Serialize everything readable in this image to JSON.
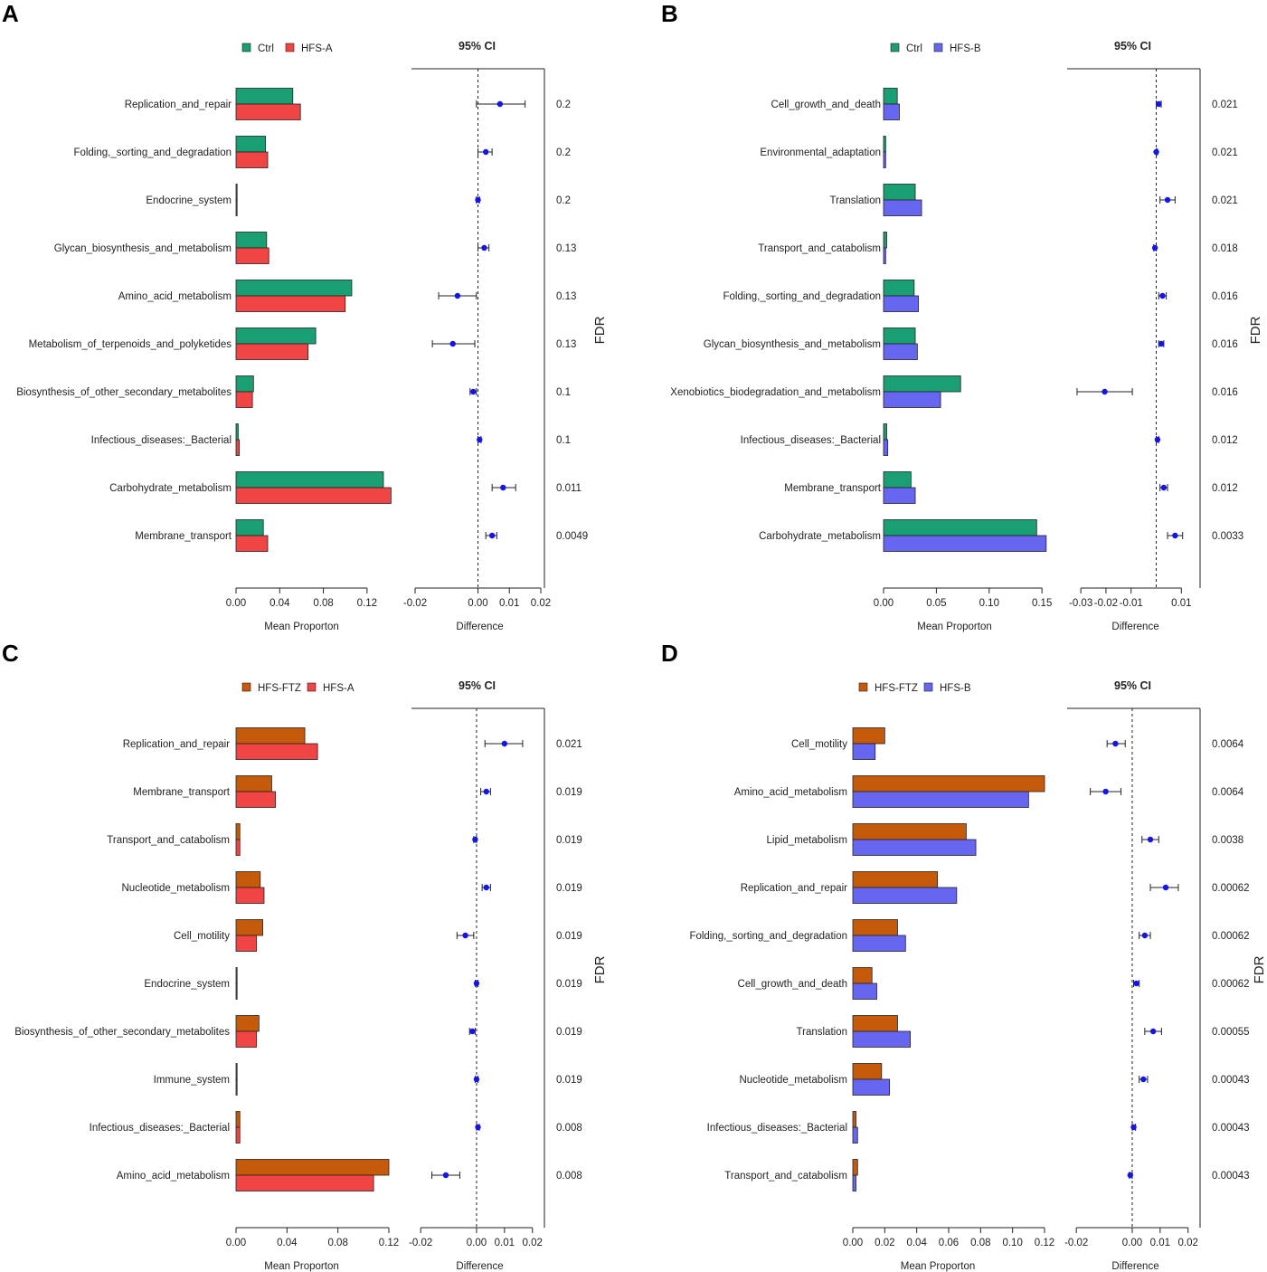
{
  "colors": {
    "green": "#1a9e74",
    "red": "#f14444",
    "orange": "#c55a0a",
    "blue": "#6666f1",
    "point": "#1515e8"
  },
  "chart_data": [
    {
      "type": "bar",
      "panel": "A",
      "legend": [
        {
          "name": "Ctrl",
          "color": "#1a9e74"
        },
        {
          "name": "HFS-A",
          "color": "#f14444"
        }
      ],
      "ci_title": "95% CI",
      "fdr_label": "FDR",
      "xlabel": "Mean Proporton",
      "diff_label": "Difference",
      "bar_xlim": [
        0,
        0.14
      ],
      "bar_ticks": [
        "0.00",
        "0.04",
        "0.08",
        "0.12"
      ],
      "bar_tick_values": [
        0,
        0.04,
        0.08,
        0.12
      ],
      "diff_xlim": [
        -0.02,
        0.02
      ],
      "diff_ticks": [
        "-0.02",
        "0.00",
        "0.01",
        "0.02"
      ],
      "diff_tick_values": [
        -0.02,
        0,
        0.01,
        0.02
      ],
      "categories": [
        "Replication_and_repair",
        "Folding,_sorting_and_degradation",
        "Endocrine_system",
        "Glycan_biosynthesis_and_metabolism",
        "Amino_acid_metabolism",
        "Metabolism_of_terpenoids_and_polyketides",
        "Biosynthesis_of_other_secondary_metabolites",
        "Infectious_diseases:_Bacterial",
        "Carbohydrate_metabolism",
        "Membrane_transport"
      ],
      "series": [
        {
          "name": "Ctrl",
          "color": "#1a9e74",
          "values": [
            0.052,
            0.027,
            0.0005,
            0.028,
            0.106,
            0.073,
            0.016,
            0.002,
            0.135,
            0.025
          ]
        },
        {
          "name": "HFS-A",
          "color": "#f14444",
          "values": [
            0.059,
            0.029,
            0.0005,
            0.03,
            0.1,
            0.066,
            0.015,
            0.003,
            0.142,
            0.029
          ]
        }
      ],
      "difference": [
        0.007,
        0.0025,
        0.0,
        0.002,
        -0.0065,
        -0.008,
        -0.0015,
        0.0005,
        0.008,
        0.0045
      ],
      "ci_low": [
        -0.0005,
        0.0,
        -0.0005,
        0.0,
        -0.0125,
        -0.0145,
        -0.0025,
        0.0,
        0.0045,
        0.0025
      ],
      "ci_high": [
        0.015,
        0.0045,
        0.0005,
        0.0035,
        -0.0005,
        -0.001,
        -0.0005,
        0.001,
        0.012,
        0.006
      ],
      "fdr": [
        "0.2",
        "0.2",
        "0.2",
        "0.13",
        "0.13",
        "0.13",
        "0.1",
        "0.1",
        "0.011",
        "0.0049"
      ]
    },
    {
      "type": "bar",
      "panel": "B",
      "legend": [
        {
          "name": "Ctrl",
          "color": "#1a9e74"
        },
        {
          "name": "HFS-B",
          "color": "#6666f1"
        }
      ],
      "ci_title": "95% CI",
      "fdr_label": "FDR",
      "xlabel": "Mean Proporton",
      "diff_label": "Difference",
      "bar_xlim": [
        0,
        0.155
      ],
      "bar_ticks": [
        "0.00",
        "0.05",
        "0.10",
        "0.15"
      ],
      "bar_tick_values": [
        0,
        0.05,
        0.1,
        0.15
      ],
      "diff_xlim": [
        -0.034,
        0.016
      ],
      "diff_ticks": [
        "-0.03",
        "-0.02",
        "-0.01",
        "0.01"
      ],
      "diff_tick_values": [
        -0.03,
        -0.02,
        -0.01,
        0.01
      ],
      "categories": [
        "Cell_growth_and_death",
        "Environmental_adaptation",
        "Translation",
        "Transport_and_catabolism",
        "Folding,_sorting_and_degradation",
        "Glycan_biosynthesis_and_metabolism",
        "Xenobiotics_biodegradation_and_metabolism",
        "Infectious_diseases:_Bacterial",
        "Membrane_transport",
        "Carbohydrate_metabolism"
      ],
      "series": [
        {
          "name": "Ctrl",
          "color": "#1a9e74",
          "values": [
            0.013,
            0.002,
            0.03,
            0.003,
            0.029,
            0.03,
            0.073,
            0.003,
            0.026,
            0.145
          ]
        },
        {
          "name": "HFS-B",
          "color": "#6666f1",
          "values": [
            0.015,
            0.002,
            0.036,
            0.002,
            0.033,
            0.032,
            0.054,
            0.004,
            0.03,
            0.154
          ]
        }
      ],
      "difference": [
        0.001,
        0.0,
        0.0045,
        -0.0005,
        0.0025,
        0.002,
        -0.0205,
        0.0005,
        0.003,
        0.0075
      ],
      "ci_low": [
        0.0,
        0.0,
        0.0015,
        -0.001,
        0.001,
        0.001,
        -0.0315,
        0.0,
        0.0015,
        0.0045
      ],
      "ci_high": [
        0.002,
        0.0005,
        0.0075,
        0.0,
        0.004,
        0.003,
        -0.0095,
        0.001,
        0.0045,
        0.0105
      ],
      "fdr": [
        "0.021",
        "0.021",
        "0.021",
        "0.018",
        "0.016",
        "0.016",
        "0.016",
        "0.012",
        "0.012",
        "0.0033"
      ]
    },
    {
      "type": "bar",
      "panel": "C",
      "legend": [
        {
          "name": "HFS-FTZ",
          "color": "#c55a0a"
        },
        {
          "name": "HFS-A",
          "color": "#f14444"
        }
      ],
      "ci_title": "95% CI",
      "fdr_label": "FDR",
      "xlabel": "Mean Proporton",
      "diff_label": "Difference",
      "bar_xlim": [
        0,
        0.12
      ],
      "bar_ticks": [
        "0.00",
        "0.04",
        "0.08",
        "0.12"
      ],
      "bar_tick_values": [
        0,
        0.04,
        0.08,
        0.12
      ],
      "diff_xlim": [
        -0.022,
        0.023
      ],
      "diff_ticks": [
        "-0.02",
        "0.00",
        "0.01",
        "0.02"
      ],
      "diff_tick_values": [
        -0.02,
        0,
        0.01,
        0.02
      ],
      "categories": [
        "Replication_and_repair",
        "Membrane_transport",
        "Transport_and_catabolism",
        "Nucleotide_metabolism",
        "Cell_motility",
        "Endocrine_system",
        "Biosynthesis_of_other_secondary_metabolites",
        "Immune_system",
        "Infectious_diseases:_Bacterial",
        "Amino_acid_metabolism"
      ],
      "series": [
        {
          "name": "HFS-FTZ",
          "color": "#c55a0a",
          "values": [
            0.054,
            0.028,
            0.003,
            0.019,
            0.021,
            0.0005,
            0.018,
            0.0005,
            0.003,
            0.12
          ]
        },
        {
          "name": "HFS-A",
          "color": "#f14444",
          "values": [
            0.064,
            0.031,
            0.003,
            0.022,
            0.016,
            0.0005,
            0.016,
            0.0005,
            0.003,
            0.108
          ]
        }
      ],
      "difference": [
        0.01,
        0.0035,
        -0.0005,
        0.0035,
        -0.004,
        0.0,
        -0.0015,
        0.0,
        0.0005,
        -0.011
      ],
      "ci_low": [
        0.003,
        0.0015,
        -0.001,
        0.002,
        -0.007,
        -0.0005,
        -0.0025,
        -0.0005,
        0.0,
        -0.016
      ],
      "ci_high": [
        0.0165,
        0.005,
        0.0,
        0.005,
        -0.001,
        0.0005,
        -0.0005,
        0.0005,
        0.001,
        -0.006
      ],
      "fdr": [
        "0.021",
        "0.019",
        "0.019",
        "0.019",
        "0.019",
        "0.019",
        "0.019",
        "0.019",
        "0.008",
        "0.008"
      ]
    },
    {
      "type": "bar",
      "panel": "D",
      "legend": [
        {
          "name": "HFS-FTZ",
          "color": "#c55a0a"
        },
        {
          "name": "HFS-B",
          "color": "#6666f1"
        }
      ],
      "ci_title": "95% CI",
      "fdr_label": "FDR",
      "xlabel": "Mean Proporton",
      "diff_label": "Difference",
      "bar_xlim": [
        0,
        0.12
      ],
      "bar_ticks": [
        "0.00",
        "0.02",
        "0.04",
        "0.06",
        "0.08",
        "0.10",
        "0.12"
      ],
      "bar_tick_values": [
        0,
        0.02,
        0.04,
        0.06,
        0.08,
        0.1,
        0.12
      ],
      "diff_xlim": [
        -0.022,
        0.023
      ],
      "diff_ticks": [
        "-0.02",
        "0.00",
        "0.01",
        "0.02"
      ],
      "diff_tick_values": [
        -0.02,
        0,
        0.01,
        0.02
      ],
      "categories": [
        "Cell_motility",
        "Amino_acid_metabolism",
        "Lipid_metabolism",
        "Replication_and_repair",
        "Folding,_sorting_and_degradation",
        "Cell_growth_and_death",
        "Translation",
        "Nucleotide_metabolism",
        "Infectious_diseases:_Bacterial",
        "Transport_and_catabolism"
      ],
      "series": [
        {
          "name": "HFS-FTZ",
          "color": "#c55a0a",
          "values": [
            0.02,
            0.12,
            0.071,
            0.053,
            0.028,
            0.012,
            0.028,
            0.018,
            0.002,
            0.003
          ]
        },
        {
          "name": "HFS-B",
          "color": "#6666f1",
          "values": [
            0.014,
            0.11,
            0.077,
            0.065,
            0.033,
            0.015,
            0.036,
            0.023,
            0.003,
            0.002
          ]
        }
      ],
      "difference": [
        -0.006,
        -0.0095,
        0.0065,
        0.012,
        0.0045,
        0.0015,
        0.0075,
        0.004,
        0.0005,
        -0.0007
      ],
      "ci_low": [
        -0.009,
        -0.015,
        0.0035,
        0.0065,
        0.0025,
        0.0005,
        0.0045,
        0.0025,
        0.0,
        -0.001
      ],
      "ci_high": [
        -0.0025,
        -0.004,
        0.0095,
        0.0165,
        0.0065,
        0.0025,
        0.0105,
        0.0055,
        0.0012,
        0.0
      ],
      "fdr": [
        "0.0064",
        "0.0064",
        "0.0038",
        "0.00062",
        "0.00062",
        "0.00062",
        "0.00055",
        "0.00043",
        "0.00043",
        "0.00043"
      ]
    }
  ]
}
